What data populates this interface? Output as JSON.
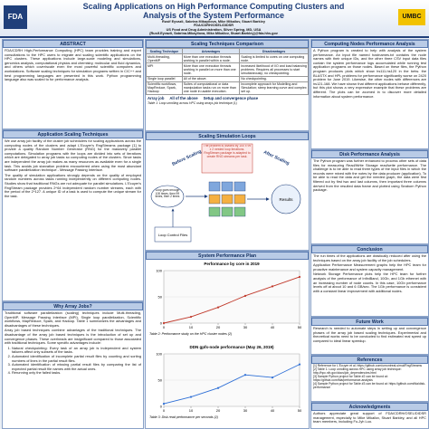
{
  "header": {
    "title_line1": "Scaling Applications on High Performance Computing Clusters and",
    "title_line2": "Analysis of the System Performance",
    "authors": "Rusif Eyvazli, Sabrina Mikayilova, Mike Mikailov, Stuart Barkley",
    "org": "FDA/CDRH/OSEL/DIDSR",
    "address": "US Food and Drug Administration, Silver Spring, MD, USA",
    "emails": "{Rusif.Eyvazli, Sabrina.Mikayilova, Mike.Mikailov, Stuart.Barkley}@fda.hhs.gov",
    "logo_left": "FDA",
    "logo_right": "UMBC"
  },
  "abstract": {
    "title": "ABSTRACT",
    "text": "FDA/CDRH High-Performance Computing (HPC) team provides training and expert consultations to the HPC users to migrate and scaling scientific applications on the HPC clusters. These applications include large-scale modeling and simulations, genomics analysis, computational physics and chemistry, molecular and fluid dynamics, and others which cover/scale even the most powerful scientific computers and workstations. Software scaling techniques for simulation programs written in C/C++ and best programming languages are presented in this work. Python programming language also was scaled to for performance analysis."
  },
  "techniques": {
    "title": "Application Scaling Techniques",
    "p1": "We use array job facility of the cluster job schedulers for scaling applications across the computing nodes of the clusters and adapt L'Ecuyer's RngStreams package [1] to provide a quality Random Number Generator (RNG) for the massively parallel computations. Simulation programs with the loops are divided into sets of iterations which are delegated to array job tasks so computing nodes of the clusters. Since tasks are independent the array job makes as many resources as available even for a single task. This avoids job starvation problem encountered when using the most abundant software parallelization technique - Message Passing Interface.",
    "p2": "The quality of simulation applications strongly depends on the quality of employed random numbers across tasks running independently on different computing nodes. Studies show that traditional RNGs are not adequate for parallel simulations. L'Ecuyer's RngStream package provides 2^64 independent random number streams, each with the period of the 2^127. A unique ID of a task is used to compute the unique stream for the task."
  },
  "why": {
    "title": "Why Array Jobs?",
    "p1": "Traditional software parallelization (scaling) techniques include Multi-threading, OpenMP, Message Passing Interface (MPI), Single loop parallelization, Scientific workflows, MapReduce, Spark, and Hadoop. Table 1 summarizes the advantages and disadvantages of these techniques.",
    "p2": "Array job based techniques combine advantages of the traditional techniques. The disadvantage of the array job based techniques is the introduction of set up and convergence phases. These overheads are insignificant compared to those associated with traditional techniques. Some specific advantages include:",
    "items": [
      "Natural checkpointing: Every task of an array job is independent and system failures affect only subsets of the tasks.",
      "Automated identification of incomplete partial result files by counting and sorting numbers of lines in the partial result files.",
      "Automated identification of missing partial result files by comparing the list of expected partial result file names with the actual ones.",
      "Rerunning only the failed tasks."
    ]
  },
  "comparison": {
    "title": "Scaling Techniques Comparison",
    "head": [
      "Scaling Technique",
      "Advantages",
      "Disadvantages"
    ],
    "rows": [
      [
        "Multi-threading, OpenMP",
        "More than one execution threads working in parallel within a node.",
        "Scaling is limited to cores on one computing node."
      ],
      [
        "MPI",
        "More than one execution threads working in parallel on more than one node.",
        "Increased likelihood of I/O and load balancing problems. Requires all processes to start simultaneously; no checkpointing."
      ],
      [
        "Single loop parallel",
        "All of the above.",
        "No checkpointing."
      ],
      [
        "Scientific workflows, MapReduce, Spark, Hadoop",
        "Suites of computational or data manipulation tasks run on more than one node in usable execution.",
        "Incomplete approach for Modelling and Simulation; steep learning curve and complex set up."
      ]
    ],
    "array_label": "Array job",
    "array_adv": "All of the above",
    "array_dis": "Setup and convergence phase",
    "caption": "Table 1: Loop unrolling across HPC using arrays job technique (1)"
  },
  "simulation": {
    "title": "Scaling Simulation Loops",
    "before": "Before Scaling",
    "after": "After Scaling",
    "box": "The problem is divided by 100 x 99 x 2 nested loop iterations. RngStream package is adapted to create RNG streams per task.",
    "loop": "Loop goes through 100 times, then 99 times, then 2 times",
    "files": "Loop Control Files",
    "results": "Results"
  },
  "perf_plan": {
    "title": "System Performance Plan"
  },
  "chart_data": [
    {
      "type": "line",
      "title": "Performance by core in 2019",
      "x": [
        0,
        10,
        20,
        30,
        40,
        50
      ],
      "values": [
        0,
        12,
        30,
        52,
        70,
        88
      ],
      "color": "#c0392b",
      "xlim": [
        0,
        50
      ],
      "ylim": [
        0,
        100
      ],
      "xticks": [
        0,
        10,
        20,
        30,
        40,
        50
      ],
      "yticks": [
        0,
        50,
        100
      ],
      "caption": "Table 2: Performance study on the HPC cluster nodes (2)"
    },
    {
      "type": "line",
      "title": "DDN gpfs-node performance (May 26, 2019)",
      "x": [
        0,
        10,
        20,
        30,
        40,
        50
      ],
      "values": [
        5,
        18,
        35,
        60,
        55,
        80
      ],
      "color": "#2e6fd6",
      "xlim": [
        0,
        50
      ],
      "ylim": [
        0,
        100
      ],
      "xticks": [
        0,
        10,
        20,
        30,
        40,
        50
      ],
      "yticks": [
        0,
        50,
        100
      ],
      "caption": "Table 3: Disk read performance per seconds (2)"
    }
  ],
  "nodes": {
    "title": "Computing Nodes Performance Analysis",
    "text": "A Python program is created to help with analysis of the system performance. An input file named hostnames.txt contains the node names with their unique IDs, and the other three CSV input data files contain the system performance logs accumulated while running test application programs on those nodes. Based on these files, the Python program produces plots which show hs111-hs120 in the betw. the BLASTX and HPL problems for performance significantly worse on 2420 problem for June 2019. Likewise, the other nodes with differences are hs121-168. We have shown that different applications behave differently, but this plot shows a very expressive example that these problems are different. The plots can be zoomed in to discover more detailed information about system performance."
  },
  "disk": {
    "title": "Disk Performance Analysis",
    "text": "The Python program was further enhanced to process other sets of data files for measuring Read/Write Storage read/write performance. The challenge is to be able to read three types of the input files in which the records were mixed with the notes by the data producer (application). To be able to read the data and get the needed graph, the data were first filtered out by first two and last columns, then important three columns derived from the resulted data frame and plotted using Seaborn Python package."
  },
  "conclusion": {
    "title": "Conclusion",
    "p1": "The run times of the applications are drastically reduced after using the techniques based on the array job facility of the job schedulers.",
    "p2": "Application Performance Measurement graphs help the HPC team for proactive maintenance and system capacity management.",
    "p3": "Network Storage Performance plots help the HPC team for further analysis of the performance of InfiniBand, 10Gb, and 1Gb ethernet with an increasing number of node counts. In this case, 10Gb performance levels off at about 10 and 6 GB/sec. The 1Gb performance is consistent with a constant linear improvement with additional nodes."
  },
  "future": {
    "title": "Future Work",
    "text": "Research is needed to automate steps in setting up and convergence phases of the array job based scaling techniques. Experimental and theoretical works need to be conducted to find estimated real speed up compared to ideal linear speedup."
  },
  "references": {
    "title": "References",
    "items": [
      "[1] Reference for L'Ecuyer et al. https://github.com/umontreal-simul/RngStreams",
      "[2] Table 1: Loop unrolling across HPC using array job technique: http://hpc.nih.gov/docs/job_dependencies.html",
      "[3] Sample Python project for Table #2 can be found at: https://github.com/fda/performance-analysis",
      "[4] Sample Python project for Table #3 can be found at: https://github.com/fda/disk-performance"
    ]
  },
  "ack": {
    "title": "Acknowledgments",
    "text": "Authors appreciate great support of FDA/CDRH/OSEL/DIDSR management, especially to Mike Mikailov, Stuart Barkley, and all HPC team members, including Fu-Jyh Luo."
  }
}
